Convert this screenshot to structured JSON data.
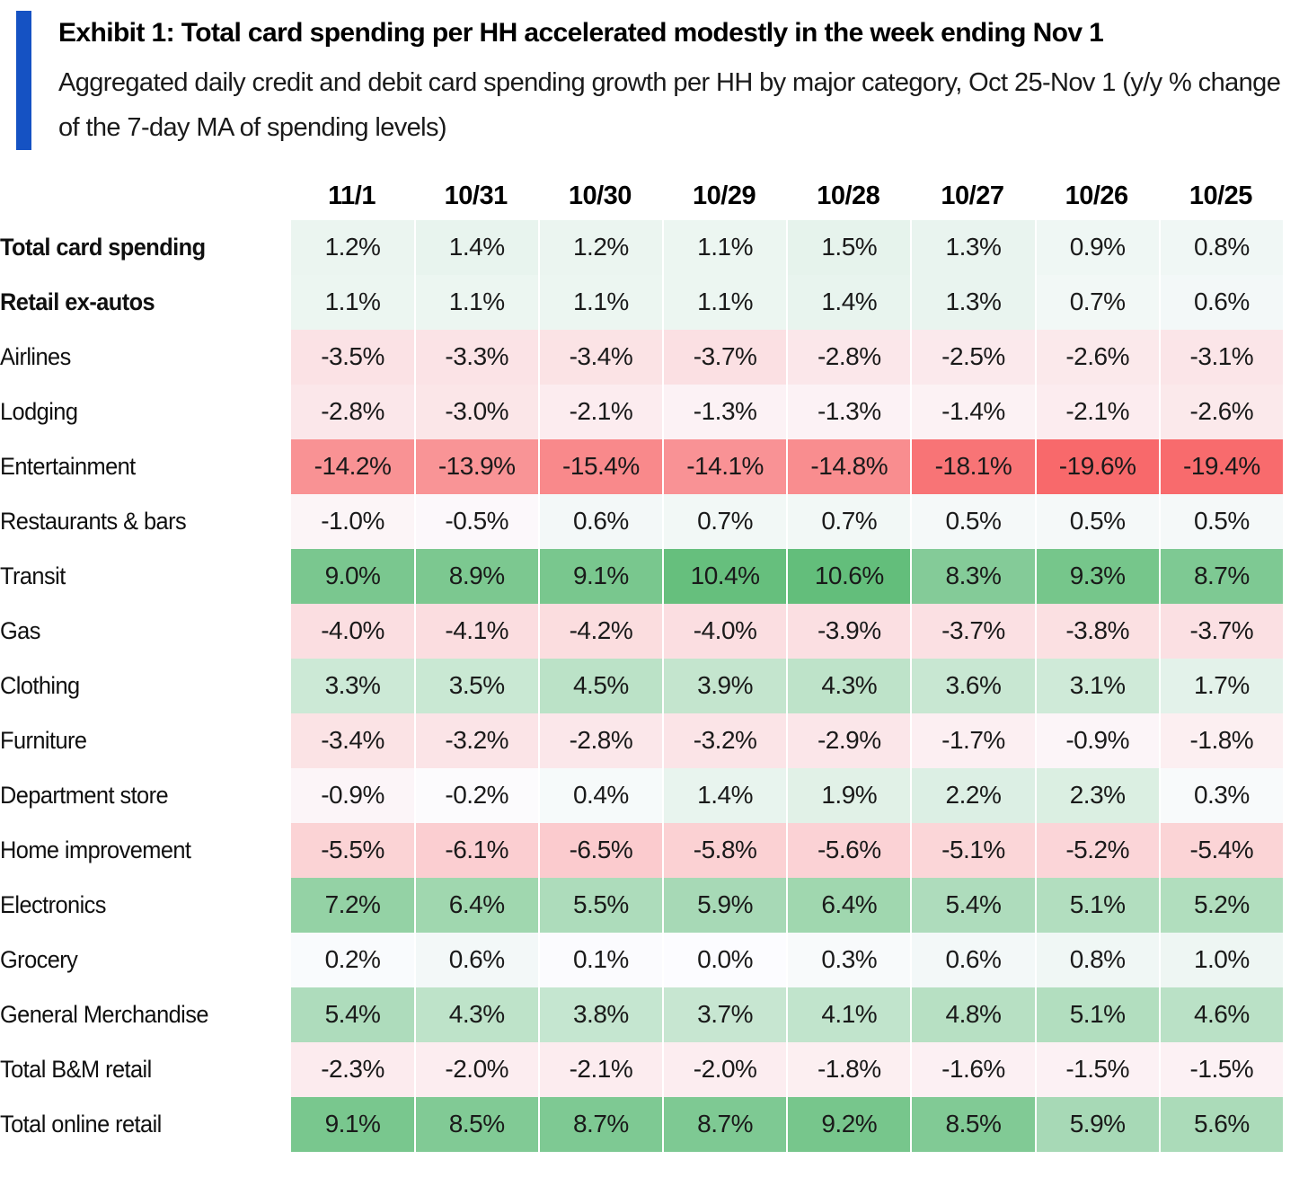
{
  "header": {
    "title": "Exhibit 1: Total card spending per HH accelerated modestly in the week ending Nov 1",
    "subtitle": "Aggregated daily credit and debit card spending growth per HH by major category, Oct 25-Nov 1 (y/y % change of the 7-day MA of spending levels)",
    "accent_color": "#1552C3"
  },
  "chart_data": {
    "type": "heatmap",
    "title": "Exhibit 1: Total card spending per HH accelerated modestly in the week ending Nov 1",
    "subtitle": "Aggregated daily credit and debit card spending growth per HH by major category, Oct 25-Nov 1 (y/y % change of the 7-day MA of spending levels)",
    "value_unit": "percent",
    "columns": [
      "11/1",
      "10/31",
      "10/30",
      "10/29",
      "10/28",
      "10/27",
      "10/26",
      "10/25"
    ],
    "rows": [
      {
        "label": "Total card spending",
        "bold": true,
        "values": [
          1.2,
          1.4,
          1.2,
          1.1,
          1.5,
          1.3,
          0.9,
          0.8
        ]
      },
      {
        "label": "Retail ex-autos",
        "bold": true,
        "values": [
          1.1,
          1.1,
          1.1,
          1.1,
          1.4,
          1.3,
          0.7,
          0.6
        ]
      },
      {
        "label": "Airlines",
        "bold": false,
        "values": [
          -3.5,
          -3.3,
          -3.4,
          -3.7,
          -2.8,
          -2.5,
          -2.6,
          -3.1
        ]
      },
      {
        "label": "Lodging",
        "bold": false,
        "values": [
          -2.8,
          -3.0,
          -2.1,
          -1.3,
          -1.3,
          -1.4,
          -2.1,
          -2.6
        ]
      },
      {
        "label": "Entertainment",
        "bold": false,
        "values": [
          -14.2,
          -13.9,
          -15.4,
          -14.1,
          -14.8,
          -18.1,
          -19.6,
          -19.4
        ]
      },
      {
        "label": "Restaurants & bars",
        "bold": false,
        "values": [
          -1.0,
          -0.5,
          0.6,
          0.7,
          0.7,
          0.5,
          0.5,
          0.5
        ]
      },
      {
        "label": "Transit",
        "bold": false,
        "values": [
          9.0,
          8.9,
          9.1,
          10.4,
          10.6,
          8.3,
          9.3,
          8.7
        ]
      },
      {
        "label": "Gas",
        "bold": false,
        "values": [
          -4.0,
          -4.1,
          -4.2,
          -4.0,
          -3.9,
          -3.7,
          -3.8,
          -3.7
        ]
      },
      {
        "label": "Clothing",
        "bold": false,
        "values": [
          3.3,
          3.5,
          4.5,
          3.9,
          4.3,
          3.6,
          3.1,
          1.7
        ]
      },
      {
        "label": "Furniture",
        "bold": false,
        "values": [
          -3.4,
          -3.2,
          -2.8,
          -3.2,
          -2.9,
          -1.7,
          -0.9,
          -1.8
        ]
      },
      {
        "label": "Department store",
        "bold": false,
        "values": [
          -0.9,
          -0.2,
          0.4,
          1.4,
          1.9,
          2.2,
          2.3,
          0.3
        ]
      },
      {
        "label": "Home improvement",
        "bold": false,
        "values": [
          -5.5,
          -6.1,
          -6.5,
          -5.8,
          -5.6,
          -5.1,
          -5.2,
          -5.4
        ]
      },
      {
        "label": "Electronics",
        "bold": false,
        "values": [
          7.2,
          6.4,
          5.5,
          5.9,
          6.4,
          5.4,
          5.1,
          5.2
        ]
      },
      {
        "label": "Grocery",
        "bold": false,
        "values": [
          0.2,
          0.6,
          0.1,
          0.0,
          0.3,
          0.6,
          0.8,
          1.0
        ]
      },
      {
        "label": "General Merchandise",
        "bold": false,
        "values": [
          5.4,
          4.3,
          3.8,
          3.7,
          4.1,
          4.8,
          5.1,
          4.6
        ]
      },
      {
        "label": "Total B&M retail",
        "bold": false,
        "values": [
          -2.3,
          -2.0,
          -2.1,
          -2.0,
          -1.8,
          -1.6,
          -1.5,
          -1.5
        ]
      },
      {
        "label": "Total online retail",
        "bold": false,
        "values": [
          9.1,
          8.5,
          8.7,
          8.7,
          9.2,
          8.5,
          5.9,
          5.6
        ]
      }
    ],
    "color_scale": {
      "min_value": -19.6,
      "mid_value": 0,
      "max_value": 10.6,
      "min_color": "#F8696B",
      "mid_color": "#FCFCFF",
      "max_color": "#63BE7B"
    },
    "layout_hints": {
      "grid": "off",
      "legend": "none",
      "cell_gap": "horizontal-only"
    }
  }
}
